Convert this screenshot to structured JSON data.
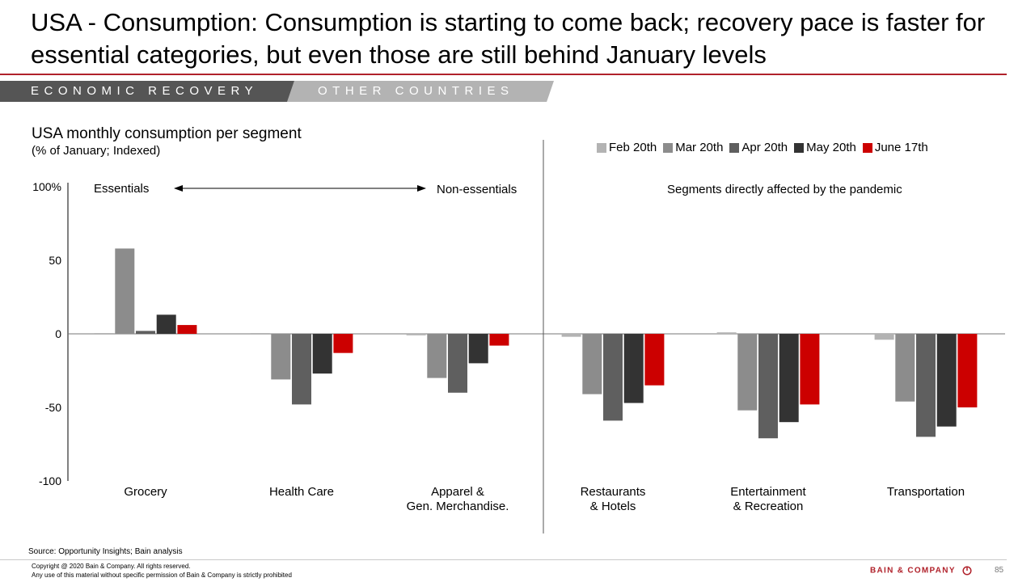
{
  "header": {
    "title": "USA - Consumption: Consumption is starting to come back; recovery pace is faster for essential categories, but even those are still behind January levels",
    "tabs": [
      {
        "label": "ECONOMIC RECOVERY",
        "active": true
      },
      {
        "label": "OTHER COUNTRIES",
        "active": false
      }
    ]
  },
  "chart_data": {
    "type": "bar",
    "title": "USA monthly consumption per segment",
    "subtitle": "(% of January; Indexed)",
    "categories": [
      "Grocery",
      "Health Care",
      "Apparel &\nGen. Merchandise.",
      "Restaurants\n& Hotels",
      "Entertainment\n& Recreation",
      "Transportation"
    ],
    "series": [
      {
        "name": "Feb 20th",
        "color": "#b3b3b3",
        "values": [
          0,
          0,
          -1,
          -2,
          1,
          -4
        ]
      },
      {
        "name": "Mar 20th",
        "color": "#8c8c8c",
        "values": [
          58,
          -31,
          -30,
          -41,
          -52,
          -46
        ]
      },
      {
        "name": "Apr 20th",
        "color": "#5f5f5f",
        "values": [
          2,
          -48,
          -40,
          -59,
          -71,
          -70
        ]
      },
      {
        "name": "May 20th",
        "color": "#333333",
        "values": [
          13,
          -27,
          -20,
          -47,
          -60,
          -63
        ]
      },
      {
        "name": "June 17th",
        "color": "#cc0000",
        "values": [
          6,
          -13,
          -8,
          -35,
          -48,
          -50
        ]
      }
    ],
    "yticks": [
      "100%",
      "50",
      "0",
      "-50",
      "-100"
    ],
    "ylim": [
      -100,
      100
    ],
    "annotations": {
      "essentials": "Essentials",
      "non_essentials": "Non-essentials",
      "pandemic": "Segments directly affected by the pandemic"
    },
    "legend_position": "top-right"
  },
  "footer": {
    "source": "Source: Opportunity Insights; Bain analysis",
    "copyright_line1": "Copyright  @ 2020 Bain & Company. All rights reserved.",
    "copyright_line2": "Any use of this material without specific permission of Bain & Company is strictly prohibited",
    "brand": "BAIN & COMPANY",
    "page_number": "85"
  }
}
